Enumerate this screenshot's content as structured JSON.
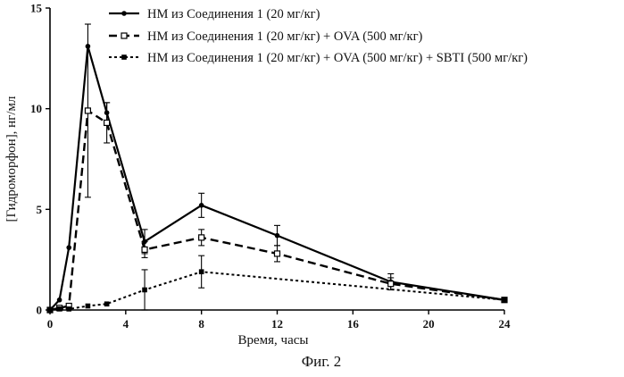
{
  "chart_data": {
    "type": "line",
    "xlabel": "Время, часы",
    "ylabel": "[Гидроморфон], нг/мл",
    "caption": "Фиг. 2",
    "xlim": [
      0,
      24
    ],
    "ylim": [
      0,
      15
    ],
    "xticks": [
      0,
      4,
      8,
      12,
      16,
      20,
      24
    ],
    "yticks": [
      0,
      5,
      10,
      15
    ],
    "legend_position": "top-left",
    "series": [
      {
        "name": "НМ из Соединения 1 (20 мг/кг)",
        "line_style": "solid",
        "marker": "circle",
        "x": [
          0,
          0.5,
          1,
          2,
          3,
          5,
          8,
          12,
          18,
          24
        ],
        "y": [
          0,
          0.5,
          3.1,
          13.1,
          9.8,
          3.4,
          5.2,
          3.7,
          1.4,
          0.5
        ],
        "error": [
          0,
          0,
          0,
          0,
          0.5,
          0.6,
          0.6,
          0.5,
          0.4,
          0
        ]
      },
      {
        "name": "НМ из Соединения 1 (20 мг/кг) + OVA (500 мг/кг)",
        "line_style": "dashed",
        "marker": "open-square",
        "x": [
          0,
          0.5,
          1,
          2,
          3,
          5,
          8,
          12,
          18,
          24
        ],
        "y": [
          0,
          0.1,
          0.2,
          9.9,
          9.3,
          3.0,
          3.6,
          2.8,
          1.3,
          0.5
        ],
        "error": [
          0,
          0,
          0,
          4.3,
          1.0,
          0.4,
          0.4,
          0.4,
          0.3,
          0
        ]
      },
      {
        "name": "НМ из Соединения 1 (20 мг/кг) + OVA (500 мг/кг) + SBTI (500 мг/кг)",
        "line_style": "dotted",
        "marker": "filled-square",
        "x": [
          0,
          0.5,
          1,
          2,
          3,
          5,
          8,
          24
        ],
        "y": [
          0,
          0.05,
          0.05,
          0.2,
          0.3,
          1.0,
          1.9,
          0.5
        ],
        "error": [
          0,
          0,
          0,
          0,
          0,
          1.0,
          0.8,
          0
        ]
      }
    ]
  }
}
